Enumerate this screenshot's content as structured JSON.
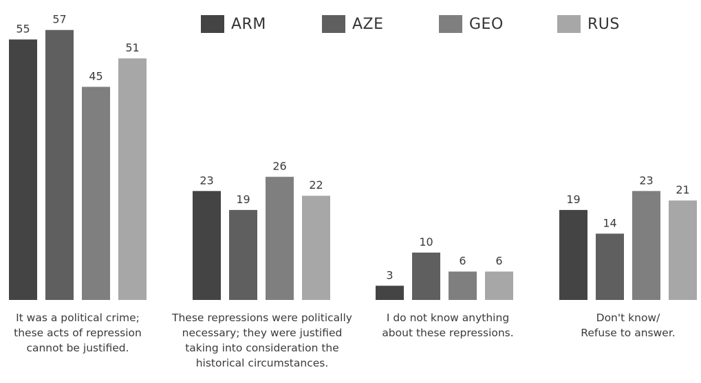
{
  "colors": {
    "ARM": "#444444",
    "AZE": "#5f5f5f",
    "GEO": "#7f7f7f",
    "RUS": "#a7a7a7",
    "text": "#3a3a3a"
  },
  "legend": {
    "items": [
      {
        "label": "ARM",
        "color": "#444444"
      },
      {
        "label": "AZE",
        "color": "#5f5f5f"
      },
      {
        "label": "GEO",
        "color": "#7f7f7f"
      },
      {
        "label": "RUS",
        "color": "#a7a7a7"
      }
    ]
  },
  "chart_data": {
    "type": "bar",
    "title": "",
    "xlabel": "",
    "ylabel": "",
    "ylim": [
      0,
      60
    ],
    "grid": false,
    "legend_position": "top",
    "categories": [
      "It was a political crime;\nthese acts of repression\ncannot be justified.",
      "These repressions were politically\nnecessary; they were justified\ntaking into consideration the\nhistorical circumstances.",
      "I do not know anything\nabout these repressions.",
      "Don't know/\nRefuse to answer."
    ],
    "series": [
      {
        "name": "ARM",
        "values": [
          55,
          23,
          3,
          19
        ]
      },
      {
        "name": "AZE",
        "values": [
          57,
          19,
          10,
          14
        ]
      },
      {
        "name": "GEO",
        "values": [
          45,
          26,
          6,
          23
        ]
      },
      {
        "name": "RUS",
        "values": [
          51,
          22,
          6,
          21
        ]
      }
    ]
  }
}
